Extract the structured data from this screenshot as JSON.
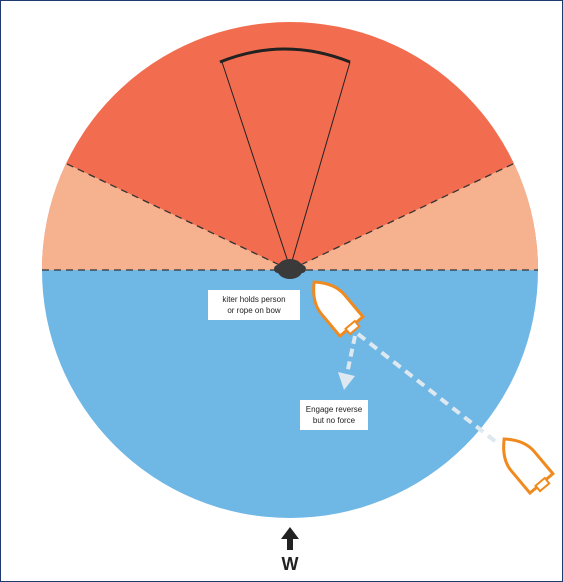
{
  "labels": {
    "kiter": [
      "kiter holds person",
      "or rope on bow"
    ],
    "reverse": [
      "Engage reverse",
      "but no force"
    ],
    "wind": "W"
  }
}
